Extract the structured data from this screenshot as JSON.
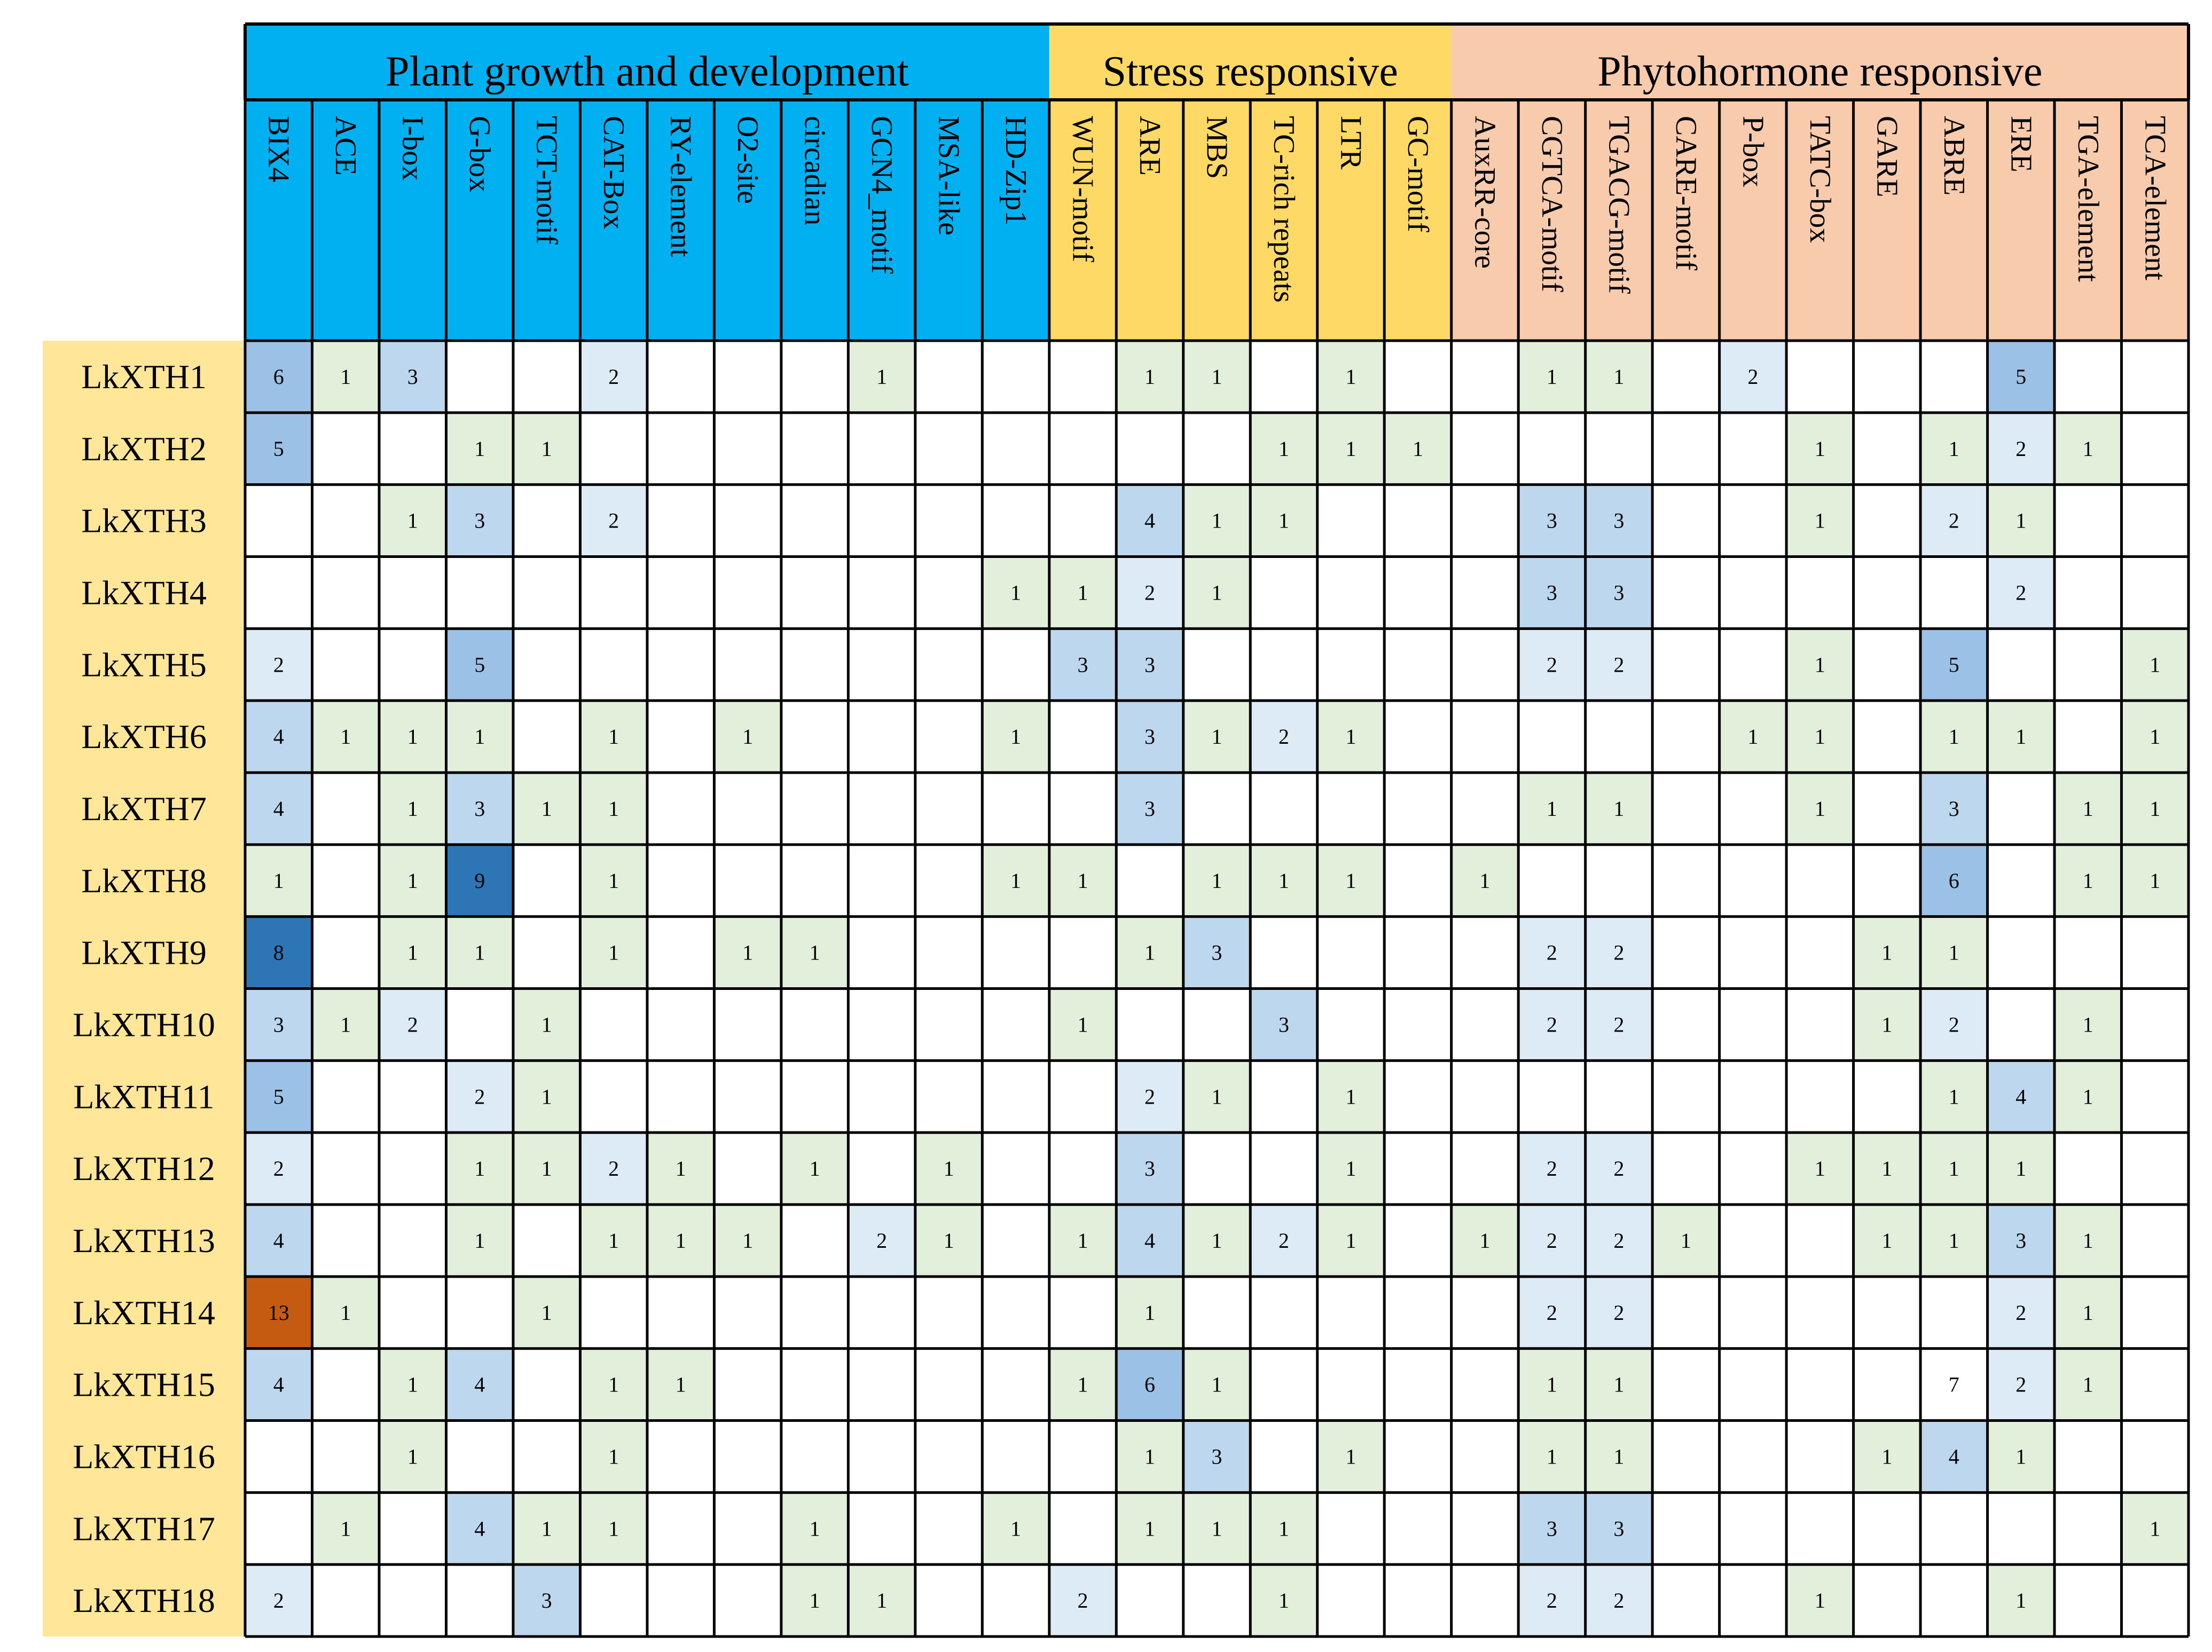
{
  "chart_data": {
    "type": "heatmap",
    "title": "",
    "groups": [
      {
        "name": "Plant growth and development",
        "span": 12,
        "color": "#00b0f0"
      },
      {
        "name": "Stress responsive",
        "span": 6,
        "color": "#ffd966"
      },
      {
        "name": "Phytohormone responsive",
        "span": 11,
        "color": "#f8cbad"
      }
    ],
    "columns": [
      "BIX4",
      "ACE",
      "I-box",
      "G-box",
      "TCT-motif",
      "CAT-Box",
      "RY-element",
      "O2-site",
      "circadian",
      "GCN4_motif",
      "MSA-like",
      "HD-Zip1",
      "WUN-motif",
      "ARE",
      "MBS",
      "TC-rich repeats",
      "LTR",
      "GC-motif",
      "AuxRR-core",
      "CGTCA-motif",
      "TGACG-motif",
      "CARE-motif",
      "P-box",
      "TATC-box",
      "GARE",
      "ABRE",
      "ERE",
      "TGA-element",
      "TCA-element"
    ],
    "rows": [
      "LkXTH1",
      "LkXTH2",
      "LkXTH3",
      "LkXTH4",
      "LkXTH5",
      "LkXTH6",
      "LkXTH7",
      "LkXTH8",
      "LkXTH9",
      "LkXTH10",
      "LkXTH11",
      "LkXTH12",
      "LkXTH13",
      "LkXTH14",
      "LkXTH15",
      "LkXTH16",
      "LkXTH17",
      "LkXTH18"
    ],
    "values": [
      [
        6,
        1,
        3,
        null,
        null,
        2,
        null,
        null,
        null,
        1,
        null,
        null,
        null,
        1,
        1,
        null,
        1,
        null,
        null,
        1,
        1,
        null,
        2,
        null,
        null,
        null,
        5,
        null,
        null
      ],
      [
        5,
        null,
        null,
        1,
        1,
        null,
        null,
        null,
        null,
        null,
        null,
        null,
        null,
        null,
        null,
        1,
        1,
        1,
        null,
        null,
        null,
        null,
        null,
        1,
        null,
        1,
        2,
        1,
        null
      ],
      [
        null,
        null,
        1,
        3,
        null,
        2,
        null,
        null,
        null,
        null,
        null,
        null,
        null,
        4,
        1,
        1,
        null,
        null,
        null,
        3,
        3,
        null,
        null,
        1,
        null,
        2,
        1,
        null,
        null
      ],
      [
        null,
        null,
        null,
        null,
        null,
        null,
        null,
        null,
        null,
        null,
        null,
        1,
        1,
        2,
        1,
        null,
        null,
        null,
        null,
        3,
        3,
        null,
        null,
        null,
        null,
        null,
        2,
        null,
        null
      ],
      [
        2,
        null,
        null,
        5,
        null,
        null,
        null,
        null,
        null,
        null,
        null,
        null,
        3,
        3,
        null,
        null,
        null,
        null,
        null,
        2,
        2,
        null,
        null,
        1,
        null,
        5,
        null,
        null,
        1
      ],
      [
        4,
        1,
        1,
        1,
        null,
        1,
        null,
        1,
        null,
        null,
        null,
        1,
        null,
        3,
        1,
        2,
        1,
        null,
        null,
        null,
        null,
        null,
        1,
        1,
        null,
        1,
        1,
        null,
        1
      ],
      [
        4,
        null,
        1,
        3,
        1,
        1,
        null,
        null,
        null,
        null,
        null,
        null,
        null,
        3,
        null,
        null,
        null,
        null,
        null,
        1,
        1,
        null,
        null,
        1,
        null,
        3,
        null,
        1,
        1
      ],
      [
        1,
        null,
        1,
        9,
        null,
        1,
        null,
        null,
        null,
        null,
        null,
        1,
        1,
        null,
        1,
        1,
        1,
        null,
        1,
        null,
        null,
        null,
        null,
        null,
        null,
        6,
        null,
        1,
        1
      ],
      [
        8,
        null,
        1,
        1,
        null,
        1,
        null,
        1,
        1,
        null,
        null,
        null,
        null,
        1,
        3,
        null,
        null,
        null,
        null,
        2,
        2,
        null,
        null,
        null,
        1,
        1,
        null,
        null,
        null
      ],
      [
        3,
        1,
        2,
        null,
        1,
        null,
        null,
        null,
        null,
        null,
        null,
        null,
        1,
        null,
        null,
        3,
        null,
        null,
        null,
        2,
        2,
        null,
        null,
        null,
        1,
        2,
        null,
        1,
        null
      ],
      [
        5,
        null,
        null,
        2,
        1,
        null,
        null,
        null,
        null,
        null,
        null,
        null,
        null,
        2,
        1,
        null,
        1,
        null,
        null,
        null,
        null,
        null,
        null,
        null,
        null,
        1,
        4,
        1,
        null
      ],
      [
        2,
        null,
        null,
        1,
        1,
        2,
        1,
        null,
        1,
        null,
        1,
        null,
        null,
        3,
        null,
        null,
        1,
        null,
        null,
        2,
        2,
        null,
        null,
        1,
        1,
        1,
        1,
        null,
        null
      ],
      [
        4,
        null,
        null,
        1,
        null,
        1,
        1,
        1,
        null,
        2,
        1,
        null,
        1,
        4,
        1,
        2,
        1,
        null,
        1,
        2,
        2,
        1,
        null,
        null,
        1,
        1,
        3,
        1,
        null
      ],
      [
        13,
        1,
        null,
        null,
        1,
        null,
        null,
        null,
        null,
        null,
        null,
        null,
        null,
        1,
        null,
        null,
        null,
        null,
        null,
        2,
        2,
        null,
        null,
        null,
        null,
        null,
        2,
        1,
        null
      ],
      [
        4,
        null,
        1,
        4,
        null,
        1,
        1,
        null,
        null,
        null,
        null,
        null,
        1,
        6,
        1,
        null,
        null,
        null,
        null,
        1,
        1,
        null,
        null,
        null,
        null,
        7,
        2,
        1,
        null
      ],
      [
        null,
        null,
        1,
        null,
        null,
        1,
        null,
        null,
        null,
        null,
        null,
        null,
        null,
        1,
        3,
        null,
        1,
        null,
        null,
        1,
        1,
        null,
        null,
        null,
        1,
        4,
        1,
        null,
        null
      ],
      [
        null,
        1,
        null,
        4,
        1,
        1,
        null,
        null,
        1,
        null,
        null,
        1,
        null,
        1,
        1,
        1,
        null,
        null,
        null,
        3,
        3,
        null,
        null,
        null,
        null,
        null,
        null,
        null,
        1
      ],
      [
        2,
        null,
        null,
        null,
        3,
        null,
        null,
        null,
        1,
        1,
        null,
        null,
        2,
        null,
        null,
        1,
        null,
        null,
        null,
        2,
        2,
        null,
        null,
        1,
        null,
        null,
        1,
        null,
        null
      ]
    ],
    "cell_colors": {
      "1": "#e2efda",
      "2": "#ddebf7",
      "3": "#bdd7ee",
      "4": "#bdd7ee",
      "5": "#9bc2e6",
      "6": "#9bc2e6",
      "7": "#ffffff",
      "8": "#2e75b6",
      "9": "#2e75b6",
      "13": "#c55a11",
      "empty": "#ffffff"
    },
    "row_label_bg": "#ffe699",
    "grid": true
  }
}
